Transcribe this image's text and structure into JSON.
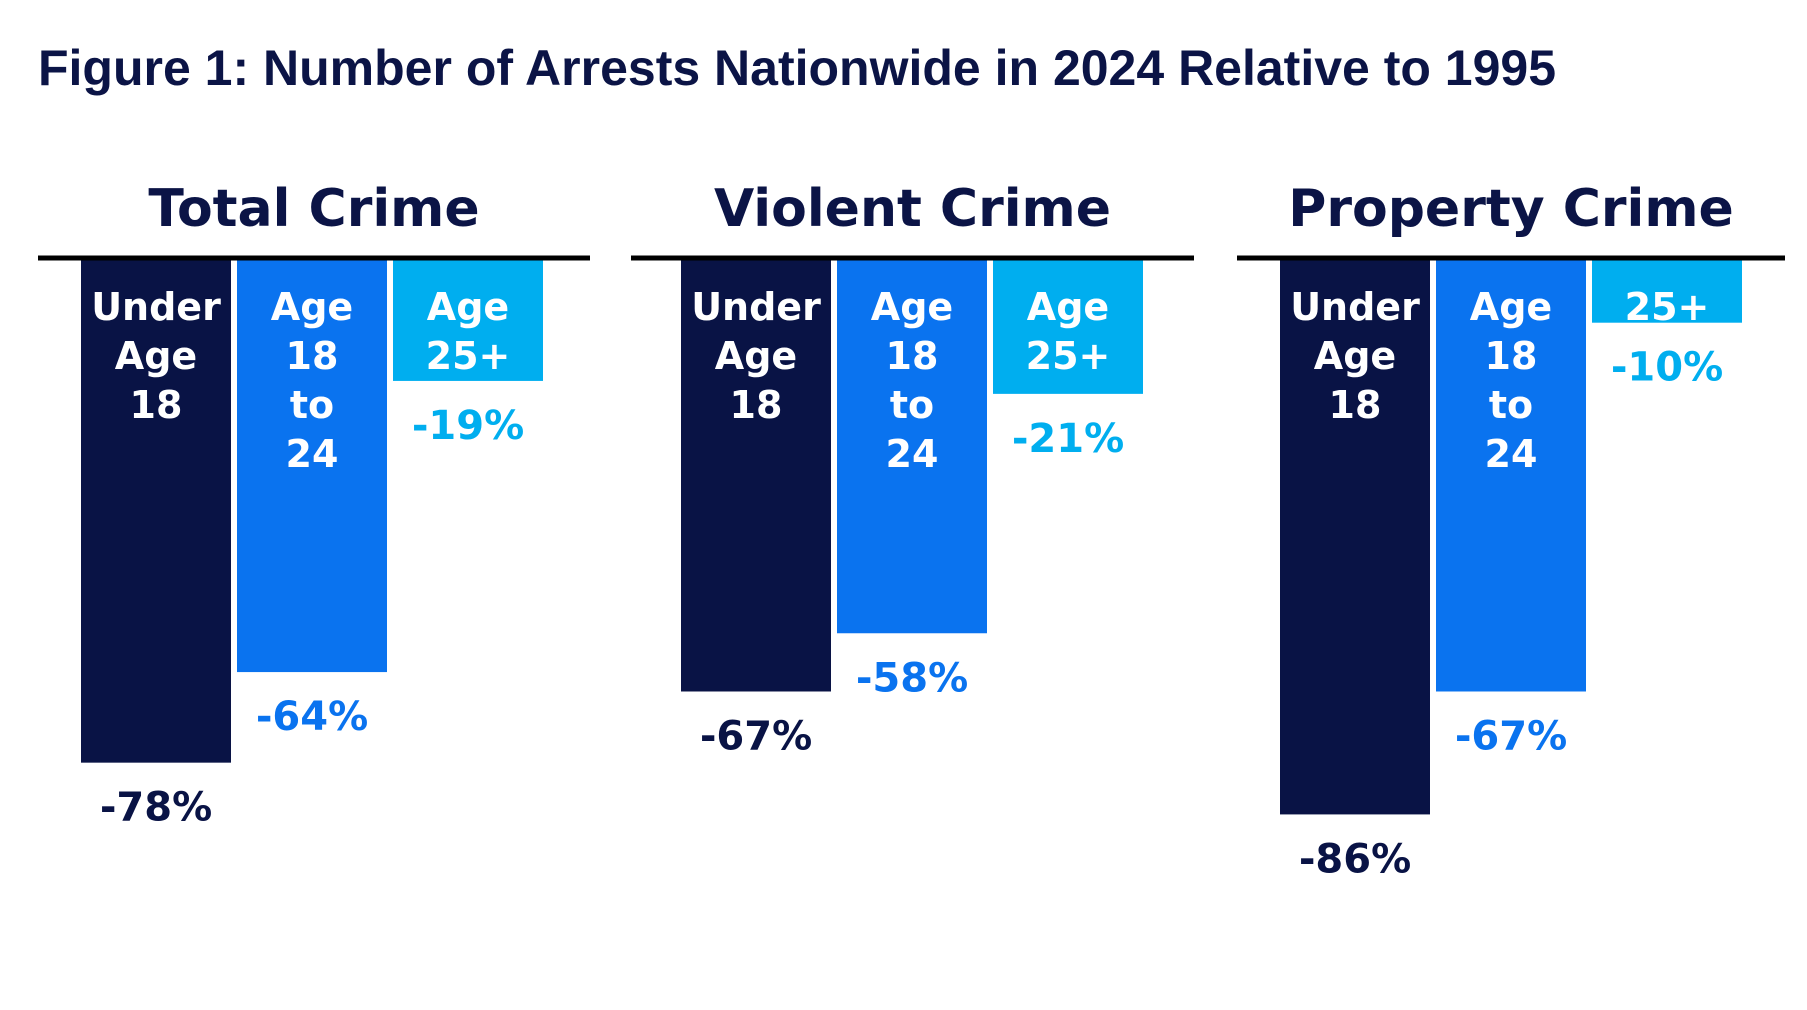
{
  "title": "Figure 1: Number of Arrests Nationwide in 2024 Relative to 1995",
  "colors": {
    "text": "#0b1446",
    "under_18": "#091345",
    "age_18_24": "#0a73ef",
    "age_25_plus": "#00aeef",
    "axis": "#000000",
    "bar_label": "#ffffff"
  },
  "chart_data": [
    {
      "type": "bar",
      "title": "Total Crime",
      "categories": [
        [
          "Under",
          "Age",
          "18"
        ],
        [
          "Age",
          "18",
          "to",
          "24"
        ],
        [
          "Age",
          "25+"
        ]
      ],
      "values": [
        -78,
        -64,
        -19
      ],
      "value_labels": [
        "-78%",
        "-64%",
        "-19%"
      ],
      "ylim": [
        -100,
        0
      ]
    },
    {
      "type": "bar",
      "title": "Violent Crime",
      "categories": [
        [
          "Under",
          "Age",
          "18"
        ],
        [
          "Age",
          "18",
          "to",
          "24"
        ],
        [
          "Age",
          "25+"
        ]
      ],
      "values": [
        -67,
        -58,
        -21
      ],
      "value_labels": [
        "-67%",
        "-58%",
        "-21%"
      ],
      "ylim": [
        -100,
        0
      ]
    },
    {
      "type": "bar",
      "title": "Property Crime",
      "categories": [
        [
          "Under",
          "Age",
          "18"
        ],
        [
          "Age",
          "18",
          "to",
          "24"
        ],
        [
          "25+"
        ]
      ],
      "values": [
        -86,
        -67,
        -10
      ],
      "value_labels": [
        "-86%",
        "-67%",
        "-10%"
      ],
      "ylim": [
        -100,
        0
      ]
    }
  ]
}
